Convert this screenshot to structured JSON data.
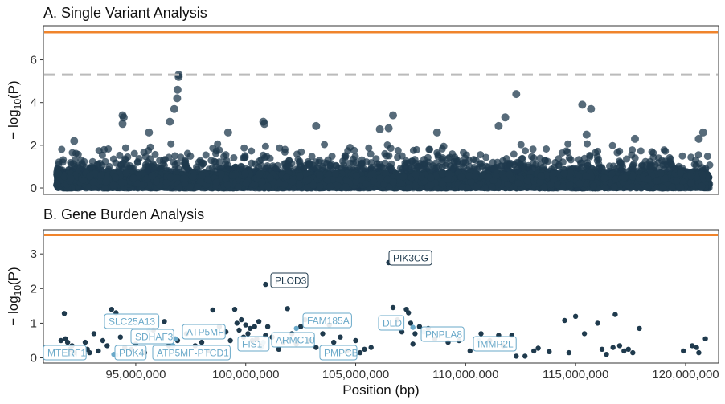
{
  "chart_data": [
    {
      "type": "scatter",
      "title": "A. Single Variant Analysis",
      "ylabel": "−log10(P)",
      "ylabel_main": "− log",
      "ylabel_sub": "10",
      "ylabel_tail": "(P)",
      "xlim": [
        90800000,
        121500000
      ],
      "ylim": [
        -0.3,
        7.6
      ],
      "yticks": [
        "0",
        "2",
        "4",
        "6"
      ],
      "ytick_values": [
        0,
        2,
        4,
        6
      ],
      "genome_wide_line": 7.3,
      "suggestive_line": 5.3,
      "line_color": "#f0842c",
      "suggestive_color": "#bbbbbb",
      "point_color": "#1f3a4d",
      "x_span": [
        91400000,
        121100000
      ],
      "notable_points": [
        {
          "x": 96950000,
          "y": 5.3
        },
        {
          "x": 96950000,
          "y": 5.2
        },
        {
          "x": 96900000,
          "y": 4.6
        },
        {
          "x": 96880000,
          "y": 4.2
        },
        {
          "x": 96750000,
          "y": 3.7
        },
        {
          "x": 94400000,
          "y": 3.4
        },
        {
          "x": 94450000,
          "y": 3.3
        },
        {
          "x": 94400000,
          "y": 3.0
        },
        {
          "x": 96550000,
          "y": 3.1
        },
        {
          "x": 100800000,
          "y": 3.1
        },
        {
          "x": 100850000,
          "y": 3.0
        },
        {
          "x": 103200000,
          "y": 2.9
        },
        {
          "x": 106700000,
          "y": 3.4
        },
        {
          "x": 106500000,
          "y": 2.8
        },
        {
          "x": 106100000,
          "y": 2.75
        },
        {
          "x": 112300000,
          "y": 4.4
        },
        {
          "x": 111800000,
          "y": 3.3
        },
        {
          "x": 111500000,
          "y": 2.9
        },
        {
          "x": 115300000,
          "y": 3.9
        },
        {
          "x": 115700000,
          "y": 3.7
        },
        {
          "x": 115500000,
          "y": 2.5
        },
        {
          "x": 117700000,
          "y": 2.3
        },
        {
          "x": 120800000,
          "y": 2.6
        },
        {
          "x": 120600000,
          "y": 2.3
        },
        {
          "x": 108700000,
          "y": 2.6
        },
        {
          "x": 99200000,
          "y": 2.6
        },
        {
          "x": 92200000,
          "y": 2.2
        },
        {
          "x": 95600000,
          "y": 2.6
        }
      ]
    },
    {
      "type": "scatter",
      "title": "B. Gene Burden Analysis",
      "xlabel": "Position (bp)",
      "ylabel": "−log10(P)",
      "ylabel_main": "− log",
      "ylabel_sub": "10",
      "ylabel_tail": "(P)",
      "xlim": [
        90800000,
        121500000
      ],
      "ylim": [
        -0.15,
        3.7
      ],
      "yticks": [
        "0",
        "1",
        "2",
        "3"
      ],
      "ytick_values": [
        0,
        1,
        2,
        3
      ],
      "xticks": [
        "95,000,000",
        "100,000,000",
        "105,000,000",
        "110,000,000",
        "115,000,000",
        "120,000,000"
      ],
      "xtick_values": [
        95000000,
        100000000,
        105000000,
        110000000,
        115000000,
        120000000
      ],
      "significance_line": 3.55,
      "line_color": "#f0842c",
      "point_color": "#1f3a4d",
      "highlight_color": "#6aa9c9",
      "labeled_genes": [
        {
          "gene": "PIK3CG",
          "x": 106500000,
          "y": 2.75,
          "dark": true
        },
        {
          "gene": "PLOD3",
          "x": 100900000,
          "y": 2.12,
          "dark": true
        },
        {
          "gene": "SLC25A13",
          "x": 95600000,
          "y": 0.8,
          "dark": false
        },
        {
          "gene": "FAM185A",
          "x": 102300000,
          "y": 0.85,
          "dark": false
        },
        {
          "gene": "DLD",
          "x": 107600000,
          "y": 0.88,
          "dark": false
        },
        {
          "gene": "ATP5MF",
          "x": 96800000,
          "y": 0.55,
          "dark": false
        },
        {
          "gene": "SDHAF3",
          "x": 96700000,
          "y": 0.35,
          "dark": false
        },
        {
          "gene": "PNPLA8",
          "x": 108100000,
          "y": 0.75,
          "dark": false
        },
        {
          "gene": "ARMC10",
          "x": 100800000,
          "y": 0.45,
          "dark": false
        },
        {
          "gene": "FIS1",
          "x": 100700000,
          "y": 0.3,
          "dark": false
        },
        {
          "gene": "IMMP2L",
          "x": 110600000,
          "y": 0.5,
          "dark": false
        },
        {
          "gene": "MTERF1",
          "x": 92100000,
          "y": 0.1,
          "dark": false
        },
        {
          "gene": "PDK4",
          "x": 94000000,
          "y": 0.1,
          "dark": false
        },
        {
          "gene": "ATP5MF-PTCD1",
          "x": 94100000,
          "y": 0.08,
          "dark": false
        },
        {
          "gene": "PMPCB",
          "x": 104900000,
          "y": 0.12,
          "dark": false
        }
      ],
      "other_points": [
        {
          "x": 91600000,
          "y": 0.5
        },
        {
          "x": 91750000,
          "y": 1.28
        },
        {
          "x": 91800000,
          "y": 0.55
        },
        {
          "x": 91900000,
          "y": 0.45
        },
        {
          "x": 92000000,
          "y": 0.25
        },
        {
          "x": 92100000,
          "y": 0.35
        },
        {
          "x": 92200000,
          "y": 0.15
        },
        {
          "x": 92700000,
          "y": 0.45
        },
        {
          "x": 92800000,
          "y": 0.25
        },
        {
          "x": 92900000,
          "y": 0.15
        },
        {
          "x": 93100000,
          "y": 0.7
        },
        {
          "x": 93300000,
          "y": 0.2
        },
        {
          "x": 93500000,
          "y": 0.5
        },
        {
          "x": 93700000,
          "y": 0.35
        },
        {
          "x": 93900000,
          "y": 1.4
        },
        {
          "x": 94100000,
          "y": 1.3
        },
        {
          "x": 94300000,
          "y": 0.6
        },
        {
          "x": 94500000,
          "y": 0.3
        },
        {
          "x": 94800000,
          "y": 0.25
        },
        {
          "x": 95000000,
          "y": 0.4
        },
        {
          "x": 95400000,
          "y": 0.15
        },
        {
          "x": 95800000,
          "y": 0.8
        },
        {
          "x": 96300000,
          "y": 1.05
        },
        {
          "x": 96500000,
          "y": 0.35
        },
        {
          "x": 96900000,
          "y": 0.5
        },
        {
          "x": 97300000,
          "y": 0.7
        },
        {
          "x": 97700000,
          "y": 0.35
        },
        {
          "x": 98000000,
          "y": 0.45
        },
        {
          "x": 98300000,
          "y": 0.2
        },
        {
          "x": 98500000,
          "y": 1.38
        },
        {
          "x": 98800000,
          "y": 0.9
        },
        {
          "x": 99100000,
          "y": 0.75
        },
        {
          "x": 99300000,
          "y": 0.5
        },
        {
          "x": 99500000,
          "y": 1.4
        },
        {
          "x": 99600000,
          "y": 1.0
        },
        {
          "x": 99700000,
          "y": 0.8
        },
        {
          "x": 99800000,
          "y": 1.1
        },
        {
          "x": 99900000,
          "y": 0.6
        },
        {
          "x": 100000000,
          "y": 0.95
        },
        {
          "x": 100100000,
          "y": 0.7
        },
        {
          "x": 100200000,
          "y": 0.85
        },
        {
          "x": 100300000,
          "y": 0.5
        },
        {
          "x": 100400000,
          "y": 0.9
        },
        {
          "x": 100500000,
          "y": 0.55
        },
        {
          "x": 100600000,
          "y": 1.05
        },
        {
          "x": 100700000,
          "y": 0.35
        },
        {
          "x": 100900000,
          "y": 0.65
        },
        {
          "x": 101000000,
          "y": 0.9
        },
        {
          "x": 101200000,
          "y": 0.6
        },
        {
          "x": 101500000,
          "y": 0.25
        },
        {
          "x": 101700000,
          "y": 0.45
        },
        {
          "x": 101900000,
          "y": 1.42
        },
        {
          "x": 102100000,
          "y": 0.7
        },
        {
          "x": 102300000,
          "y": 0.4
        },
        {
          "x": 102500000,
          "y": 0.9
        },
        {
          "x": 102700000,
          "y": 1.1
        },
        {
          "x": 102900000,
          "y": 0.5
        },
        {
          "x": 103200000,
          "y": 0.3
        },
        {
          "x": 103500000,
          "y": 0.7
        },
        {
          "x": 103800000,
          "y": 0.95
        },
        {
          "x": 104000000,
          "y": 0.45
        },
        {
          "x": 104300000,
          "y": 0.6
        },
        {
          "x": 104600000,
          "y": 0.2
        },
        {
          "x": 105000000,
          "y": 0.5
        },
        {
          "x": 105200000,
          "y": 0.15
        },
        {
          "x": 105400000,
          "y": 0.25
        },
        {
          "x": 105700000,
          "y": 0.3
        },
        {
          "x": 106700000,
          "y": 1.45
        },
        {
          "x": 106900000,
          "y": 1.1
        },
        {
          "x": 107100000,
          "y": 0.75
        },
        {
          "x": 107300000,
          "y": 1.4
        },
        {
          "x": 107400000,
          "y": 1.3
        },
        {
          "x": 107500000,
          "y": 1.0
        },
        {
          "x": 107600000,
          "y": 0.4
        },
        {
          "x": 107700000,
          "y": 0.7
        },
        {
          "x": 107900000,
          "y": 0.9
        },
        {
          "x": 108300000,
          "y": 0.85
        },
        {
          "x": 108600000,
          "y": 0.55
        },
        {
          "x": 109200000,
          "y": 0.45
        },
        {
          "x": 109700000,
          "y": 0.5
        },
        {
          "x": 110200000,
          "y": 0.2
        },
        {
          "x": 110700000,
          "y": 0.7
        },
        {
          "x": 111100000,
          "y": 0.5
        },
        {
          "x": 111500000,
          "y": 0.65
        },
        {
          "x": 111700000,
          "y": 0.35
        },
        {
          "x": 112100000,
          "y": 0.65
        },
        {
          "x": 112300000,
          "y": 0.05
        },
        {
          "x": 112700000,
          "y": 0.05
        },
        {
          "x": 113100000,
          "y": 0.2
        },
        {
          "x": 113300000,
          "y": 0.28
        },
        {
          "x": 113800000,
          "y": 0.18
        },
        {
          "x": 114500000,
          "y": 1.08
        },
        {
          "x": 114700000,
          "y": 0.15
        },
        {
          "x": 115000000,
          "y": 1.2
        },
        {
          "x": 115400000,
          "y": 0.7
        },
        {
          "x": 116000000,
          "y": 1.0
        },
        {
          "x": 116200000,
          "y": 0.25
        },
        {
          "x": 116400000,
          "y": 0.1
        },
        {
          "x": 116700000,
          "y": 0.3
        },
        {
          "x": 116800000,
          "y": 1.25
        },
        {
          "x": 117000000,
          "y": 0.35
        },
        {
          "x": 117200000,
          "y": 0.2
        },
        {
          "x": 117400000,
          "y": 0.25
        },
        {
          "x": 117600000,
          "y": 0.15
        },
        {
          "x": 117900000,
          "y": 0.85
        },
        {
          "x": 119900000,
          "y": 0.2
        },
        {
          "x": 120300000,
          "y": 0.35
        },
        {
          "x": 120500000,
          "y": 0.3
        },
        {
          "x": 120600000,
          "y": 0.15
        },
        {
          "x": 120900000,
          "y": 0.55
        }
      ]
    }
  ]
}
